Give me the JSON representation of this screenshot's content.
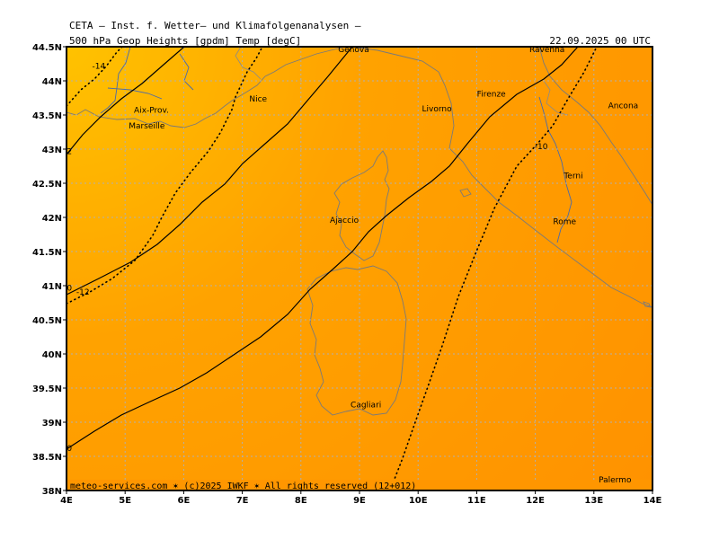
{
  "header": {
    "line1": "CETA — Inst. f. Wetter— und Klimafolgenanalysen —",
    "line2": "500_hPa_Geop_Heights_[gpdm]_Temp_[degC]",
    "valid_time": "22.09.2025 00 UTC"
  },
  "map": {
    "lon_range": [
      4,
      14
    ],
    "lat_range": [
      38,
      44.5
    ],
    "x_ticks": [
      "4E",
      "5E",
      "6E",
      "7E",
      "8E",
      "9E",
      "10E",
      "11E",
      "12E",
      "13E",
      "14E"
    ],
    "y_ticks": [
      "44.5N",
      "44N",
      "43.5N",
      "43N",
      "42.5N",
      "42N",
      "41.5N",
      "41N",
      "40.5N",
      "40N",
      "39.5N",
      "39N",
      "38.5N",
      "38N"
    ],
    "colors": {
      "warm": "#ff9600",
      "mid": "#ffaa00",
      "cool": "#ffc200",
      "coast": "#7a7a7a",
      "river": "#4a6aaa"
    },
    "cities": [
      {
        "name": "Genova",
        "lon": 8.9,
        "lat": 44.42
      },
      {
        "name": "Ravenna",
        "lon": 12.2,
        "lat": 44.42
      },
      {
        "name": "Nice",
        "lon": 7.27,
        "lat": 43.7
      },
      {
        "name": "Firenze",
        "lon": 11.25,
        "lat": 43.77
      },
      {
        "name": "Aix-Prov.",
        "lon": 5.45,
        "lat": 43.53
      },
      {
        "name": "Ancona",
        "lon": 13.5,
        "lat": 43.6
      },
      {
        "name": "Livorno",
        "lon": 10.32,
        "lat": 43.55
      },
      {
        "name": "Marseille",
        "lon": 5.37,
        "lat": 43.3
      },
      {
        "name": "Terni",
        "lon": 12.65,
        "lat": 42.57
      },
      {
        "name": "Ajaccio",
        "lon": 8.74,
        "lat": 41.92
      },
      {
        "name": "Rome",
        "lon": 12.5,
        "lat": 41.9
      },
      {
        "name": "Cagliari",
        "lon": 9.11,
        "lat": 39.22
      },
      {
        "name": "Palermo",
        "lon": 13.36,
        "lat": 38.12
      }
    ],
    "contour_labels": [
      {
        "text": "-14",
        "lon": 4.55,
        "lat": 44.18
      },
      {
        "text": "-12",
        "lon": 4.28,
        "lat": 40.87
      },
      {
        "text": "-10",
        "lon": 12.1,
        "lat": 43.0
      },
      {
        "text": "2",
        "lon": 4.05,
        "lat": 42.93
      },
      {
        "text": "0",
        "lon": 4.05,
        "lat": 38.58
      },
      {
        "text": "0",
        "lon": 4.05,
        "lat": 40.93
      }
    ]
  },
  "footer": {
    "credit": "meteo-services.com ✶ (c)2025 IWKF ✶ All rights reserved (12+012)"
  }
}
